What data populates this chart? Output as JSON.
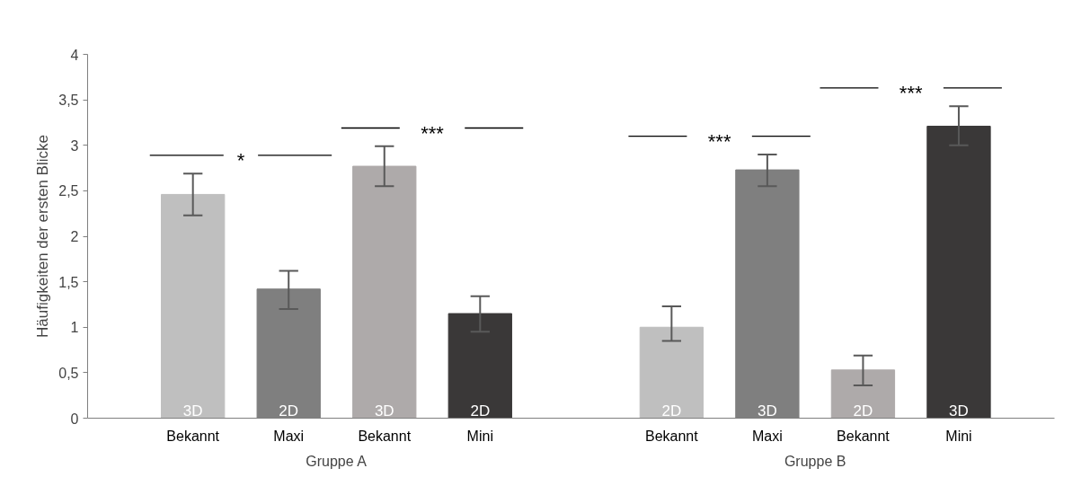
{
  "chart_data": {
    "type": "bar",
    "ylabel": "Häufigkeiten der ersten Blicke",
    "categories": [
      "Bekannt",
      "Maxi",
      "Bekannt",
      "Mini",
      null,
      "Bekannt",
      "Maxi",
      "Bekannt",
      "Mini"
    ],
    "values": [
      2.46,
      1.42,
      2.77,
      1.15,
      null,
      1.0,
      2.73,
      0.53,
      3.21
    ],
    "errors": [
      [
        2.23,
        2.69
      ],
      [
        1.2,
        1.62
      ],
      [
        2.55,
        2.99
      ],
      [
        0.95,
        1.34
      ],
      null,
      [
        0.85,
        1.23
      ],
      [
        2.55,
        2.9
      ],
      [
        0.36,
        0.69
      ],
      [
        3.0,
        3.43
      ]
    ],
    "colors": [
      "#bfbfbf",
      "#7f7f7f",
      "#aeaaaa",
      "#3a3838",
      null,
      "#bfbfbf",
      "#7f7f7f",
      "#aeaaaa",
      "#3a3838"
    ],
    "annotations": [
      "3D",
      "2D",
      "3D",
      "2D",
      "2D",
      "3D",
      "2D",
      "3D",
      "*",
      "***",
      "***",
      "***",
      "Gruppe A",
      "Gruppe B"
    ],
    "ylim": [
      0,
      4
    ],
    "yticks": [
      0,
      {
        "value": 0.5,
        "label": "0,5"
      },
      1,
      {
        "value": 1.5,
        "label": "1,5"
      },
      2,
      {
        "value": 2.5,
        "label": "2,5"
      },
      3,
      {
        "value": 3.5,
        "label": "3,5"
      },
      4
    ],
    "grid": false
  }
}
